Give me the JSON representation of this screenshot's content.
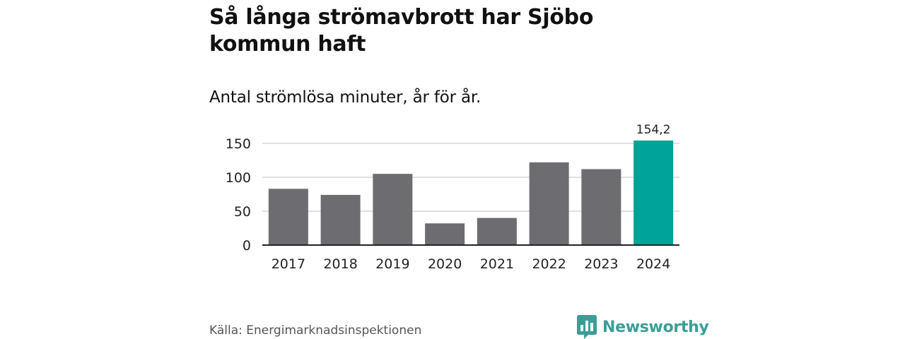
{
  "title": "Så långa strömavbrott har Sjöbo kommun haft",
  "subtitle": "Antal strömlösa minuter, år för år.",
  "source": "Källa: Energimarknadsinspektionen",
  "brand": {
    "name": "Newsworthy",
    "color": "#3a9e97",
    "logo_icon": "newsworthy-logo-icon"
  },
  "chart_data": {
    "type": "bar",
    "categories": [
      "2017",
      "2018",
      "2019",
      "2020",
      "2021",
      "2022",
      "2023",
      "2024"
    ],
    "values": [
      83,
      74,
      105,
      32,
      40,
      122,
      112,
      154.2
    ],
    "highlight_index": 7,
    "highlight_label": "154,2",
    "ylim": [
      0,
      160
    ],
    "yticks": [
      0,
      50,
      100,
      150
    ],
    "grid": true,
    "bar_color": "#6d6c71",
    "highlight_color": "#00a397"
  }
}
